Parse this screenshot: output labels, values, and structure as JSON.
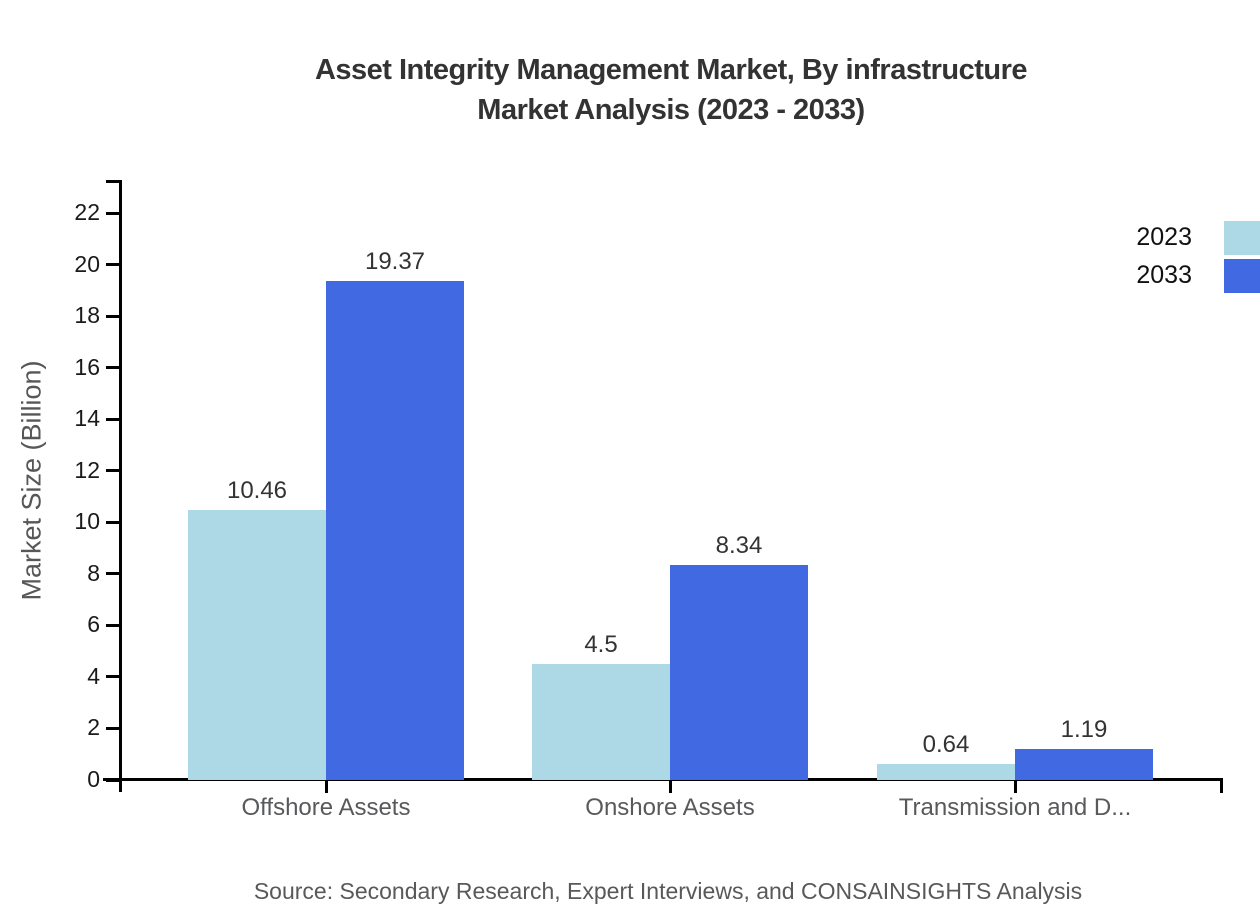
{
  "title": {
    "line1": "Asset Integrity Management Market, By infrastructure",
    "line2": "Market Analysis (2023 - 2033)"
  },
  "source_note": "Source: Secondary Research, Expert Interviews, and CONSAINSIGHTS Analysis",
  "chart_data": {
    "type": "bar",
    "title": "Asset Integrity Management Market, By infrastructure Market Analysis (2023 - 2033)",
    "xlabel": "",
    "ylabel": "Market Size (Billion)",
    "categories": [
      "Offshore Assets",
      "Onshore Assets",
      "Transmission and D..."
    ],
    "series": [
      {
        "name": "2023",
        "color": "#ADD8E6",
        "values": [
          10.46,
          4.5,
          0.64
        ]
      },
      {
        "name": "2033",
        "color": "#4169E1",
        "values": [
          19.37,
          8.34,
          1.19
        ]
      }
    ],
    "value_labels": {
      "2023": [
        "10.46",
        "4.5",
        "0.64"
      ],
      "2033": [
        "19.37",
        "8.34",
        "1.19"
      ]
    },
    "ylim": [
      0,
      23.3
    ],
    "yticks": [
      0,
      2,
      4,
      6,
      8,
      10,
      12,
      14,
      16,
      18,
      20,
      22
    ],
    "grid": false,
    "legend_position": "top-right",
    "background_color": "#ffffff",
    "axis_color": "#000000",
    "text_colors": {
      "title": "#333333",
      "tick_labels": "#1a1a1a",
      "category_labels": "#58595b",
      "source": "#58595b"
    }
  }
}
